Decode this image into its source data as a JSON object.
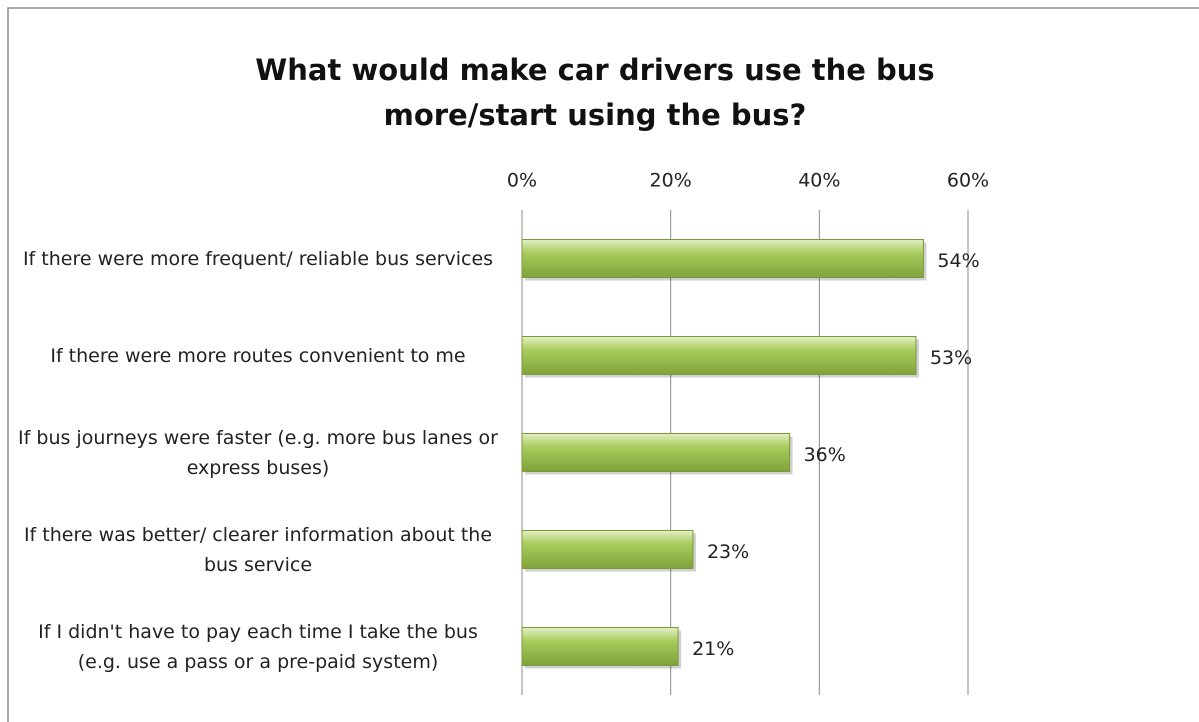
{
  "chart_data": {
    "type": "bar",
    "orientation": "horizontal",
    "title": "What would make car drivers use the bus more/start using the bus?",
    "categories": [
      "If there were more frequent/ reliable bus services",
      "If there were more routes convenient to me",
      "If bus journeys were faster (e.g. more bus lanes or express buses)",
      "If there was better/ clearer information about the bus service",
      "If I didn't have to pay each time I take the bus (e.g. use a pass or a pre-paid system)"
    ],
    "values": [
      54,
      53,
      36,
      23,
      21
    ],
    "value_labels": [
      "54%",
      "53%",
      "36%",
      "23%",
      "21%"
    ],
    "color": "#9bbb59",
    "xlim": [
      0,
      60
    ],
    "xticks": [
      {
        "value": 0,
        "label": "0%"
      },
      {
        "value": 20,
        "label": "20%"
      },
      {
        "value": 40,
        "label": "40%"
      },
      {
        "value": 60,
        "label": "60%"
      }
    ],
    "grid": true
  }
}
